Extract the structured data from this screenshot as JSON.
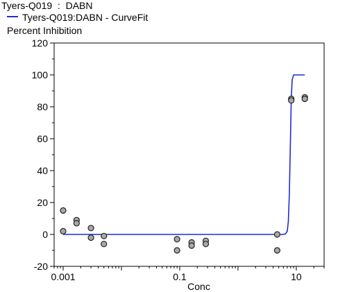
{
  "chart_data": {
    "type": "scatter",
    "title": "Tyers-Q019  :  DABN",
    "legend": [
      "Tyers-Q019:DABN - CurveFit"
    ],
    "ylabel": "Percent Inhibition",
    "xlabel": "Conc",
    "x_scale": "log",
    "xlim": [
      0.0007,
      30
    ],
    "ylim": [
      -20,
      120
    ],
    "y_ticks": [
      -20,
      0,
      20,
      40,
      60,
      80,
      100,
      120
    ],
    "x_ticks": [
      0.001,
      0.1,
      10
    ],
    "x_tick_labels": [
      "0.001",
      "0.1",
      "10"
    ],
    "grid": false,
    "legend_position": "top-left",
    "colors": {
      "curve": "#1f2bd6",
      "points_fill": "#a8a8a8",
      "points_stroke": "#222222"
    },
    "points": [
      {
        "x": 0.001,
        "y": 15
      },
      {
        "x": 0.001,
        "y": 2
      },
      {
        "x": 0.0017,
        "y": 9
      },
      {
        "x": 0.0017,
        "y": 7
      },
      {
        "x": 0.003,
        "y": 4
      },
      {
        "x": 0.003,
        "y": -2
      },
      {
        "x": 0.005,
        "y": -1
      },
      {
        "x": 0.005,
        "y": -6
      },
      {
        "x": 0.09,
        "y": -3
      },
      {
        "x": 0.09,
        "y": -10
      },
      {
        "x": 0.16,
        "y": -5
      },
      {
        "x": 0.16,
        "y": -7
      },
      {
        "x": 0.28,
        "y": -4
      },
      {
        "x": 0.28,
        "y": -6
      },
      {
        "x": 4.7,
        "y": 0
      },
      {
        "x": 4.7,
        "y": -10
      },
      {
        "x": 8.2,
        "y": 85
      },
      {
        "x": 8.2,
        "y": 84
      },
      {
        "x": 14,
        "y": 86
      },
      {
        "x": 14,
        "y": 85
      }
    ],
    "curve": {
      "name": "Tyers-Q019:DABN - CurveFit",
      "x": [
        0.001,
        0.002,
        0.005,
        0.01,
        0.05,
        0.1,
        0.5,
        1,
        2,
        4,
        5,
        6,
        6.5,
        7,
        7.3,
        7.6,
        7.9,
        8.2,
        8.5,
        9,
        10,
        14
      ],
      "y": [
        0,
        0,
        0,
        0,
        0,
        0,
        0,
        0,
        0,
        0,
        0,
        0,
        0.3,
        2,
        8,
        25,
        55,
        85,
        97,
        100,
        100,
        100
      ]
    }
  }
}
